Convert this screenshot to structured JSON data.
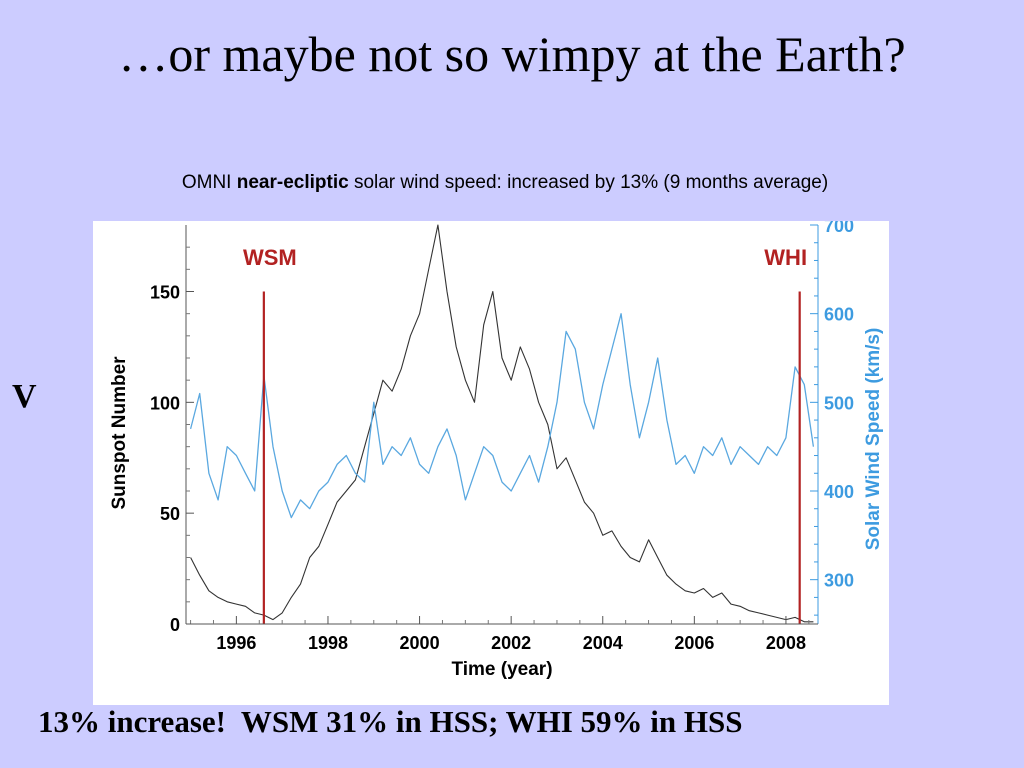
{
  "slide": {
    "title": "…or maybe not so wimpy at the Earth?",
    "subtitle_pre": "OMNI ",
    "subtitle_bold": "near-ecliptic",
    "subtitle_post": " solar wind speed: increased by 13% (9 months average)",
    "side_label": "V",
    "footer": "13% increase!  WSM 31% in HSS; WHI 59% in HSS"
  },
  "chart_data": {
    "type": "line",
    "xlabel": "Time (year)",
    "ylabel_left": "Sunspot Number",
    "ylabel_right": "Solar Wind Speed (km/s)",
    "xlim": [
      1994.9,
      2008.7
    ],
    "ylim_left": [
      0,
      180
    ],
    "ylim_right": [
      250,
      700
    ],
    "x_ticks": [
      1996,
      1998,
      2000,
      2002,
      2004,
      2006,
      2008
    ],
    "y_ticks_left": [
      0,
      50,
      100,
      150
    ],
    "y_ticks_right": [
      300,
      400,
      500,
      600,
      700
    ],
    "colors": {
      "sunspot": "#333333",
      "wind": "#5aa8e0",
      "marker": "#b22222",
      "right_axis": "#3d9be0"
    },
    "markers": [
      {
        "label": "WSM",
        "x": 1996.6
      },
      {
        "label": "WHI",
        "x": 2008.3
      }
    ],
    "series": [
      {
        "key": "sunspot",
        "axis": "left",
        "x": [
          1995.0,
          1995.2,
          1995.4,
          1995.6,
          1995.8,
          1996.0,
          1996.2,
          1996.4,
          1996.6,
          1996.8,
          1997.0,
          1997.2,
          1997.4,
          1997.6,
          1997.8,
          1998.0,
          1998.2,
          1998.4,
          1998.6,
          1998.8,
          1999.0,
          1999.2,
          1999.4,
          1999.6,
          1999.8,
          2000.0,
          2000.2,
          2000.4,
          2000.6,
          2000.8,
          2001.0,
          2001.2,
          2001.4,
          2001.6,
          2001.8,
          2002.0,
          2002.2,
          2002.4,
          2002.6,
          2002.8,
          2003.0,
          2003.2,
          2003.4,
          2003.6,
          2003.8,
          2004.0,
          2004.2,
          2004.4,
          2004.6,
          2004.8,
          2005.0,
          2005.2,
          2005.4,
          2005.6,
          2005.8,
          2006.0,
          2006.2,
          2006.4,
          2006.6,
          2006.8,
          2007.0,
          2007.2,
          2007.4,
          2007.6,
          2007.8,
          2008.0,
          2008.2,
          2008.4,
          2008.6
        ],
        "values": [
          30,
          22,
          15,
          12,
          10,
          9,
          8,
          5,
          4,
          2,
          5,
          12,
          18,
          30,
          35,
          45,
          55,
          60,
          65,
          80,
          95,
          110,
          105,
          115,
          130,
          140,
          160,
          180,
          150,
          125,
          110,
          100,
          135,
          150,
          120,
          110,
          125,
          115,
          100,
          90,
          70,
          75,
          65,
          55,
          50,
          40,
          42,
          35,
          30,
          28,
          38,
          30,
          22,
          18,
          15,
          14,
          16,
          12,
          14,
          9,
          8,
          6,
          5,
          4,
          3,
          2,
          3,
          1,
          1
        ]
      },
      {
        "key": "wind",
        "axis": "right",
        "x": [
          1995.0,
          1995.2,
          1995.4,
          1995.6,
          1995.8,
          1996.0,
          1996.2,
          1996.4,
          1996.6,
          1996.8,
          1997.0,
          1997.2,
          1997.4,
          1997.6,
          1997.8,
          1998.0,
          1998.2,
          1998.4,
          1998.6,
          1998.8,
          1999.0,
          1999.2,
          1999.4,
          1999.6,
          1999.8,
          2000.0,
          2000.2,
          2000.4,
          2000.6,
          2000.8,
          2001.0,
          2001.2,
          2001.4,
          2001.6,
          2001.8,
          2002.0,
          2002.2,
          2002.4,
          2002.6,
          2002.8,
          2003.0,
          2003.2,
          2003.4,
          2003.6,
          2003.8,
          2004.0,
          2004.2,
          2004.4,
          2004.6,
          2004.8,
          2005.0,
          2005.2,
          2005.4,
          2005.6,
          2005.8,
          2006.0,
          2006.2,
          2006.4,
          2006.6,
          2006.8,
          2007.0,
          2007.2,
          2007.4,
          2007.6,
          2007.8,
          2008.0,
          2008.2,
          2008.4,
          2008.6
        ],
        "values": [
          470,
          510,
          420,
          390,
          450,
          440,
          420,
          400,
          530,
          450,
          400,
          370,
          390,
          380,
          400,
          410,
          430,
          440,
          420,
          410,
          500,
          430,
          450,
          440,
          460,
          430,
          420,
          450,
          470,
          440,
          390,
          420,
          450,
          440,
          410,
          400,
          420,
          440,
          410,
          450,
          500,
          580,
          560,
          500,
          470,
          520,
          560,
          600,
          520,
          460,
          500,
          550,
          480,
          430,
          440,
          420,
          450,
          440,
          460,
          430,
          450,
          440,
          430,
          450,
          440,
          460,
          540,
          520,
          450
        ]
      }
    ]
  }
}
